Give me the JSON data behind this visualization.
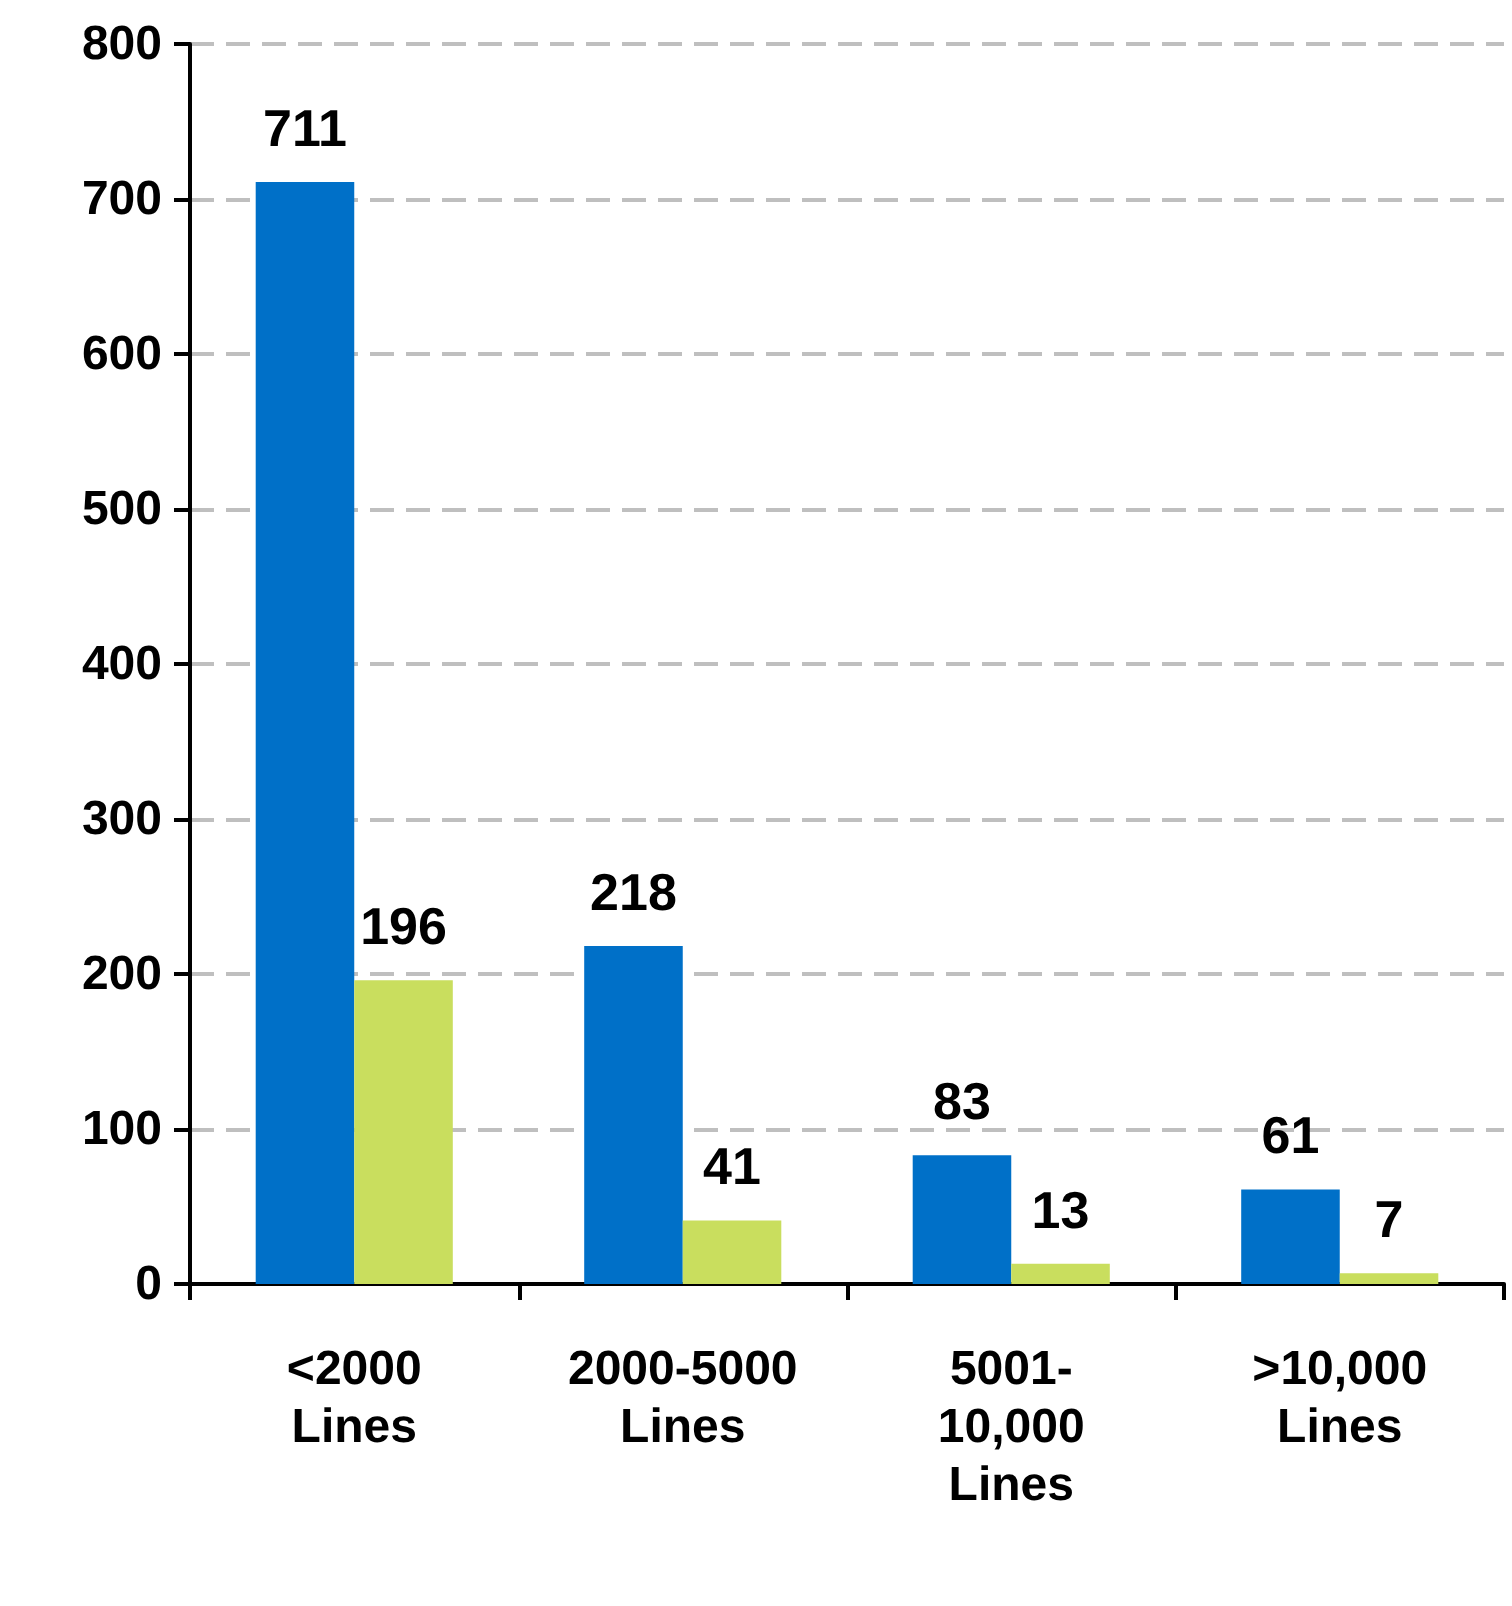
{
  "chart_data": {
    "type": "bar",
    "categories": [
      "<2000 Lines",
      "2000-5000 Lines",
      "5001-10,000 Lines",
      ">10,000 Lines"
    ],
    "series": [
      {
        "color": "#0070c8",
        "values": [
          711,
          218,
          83,
          61
        ]
      },
      {
        "color": "#c9de5e",
        "values": [
          196,
          41,
          13,
          7
        ]
      }
    ],
    "ylim": [
      0,
      800
    ],
    "yticks": [
      0,
      100,
      200,
      300,
      400,
      500,
      600,
      700,
      800
    ],
    "grid": "y",
    "data_labels": true
  }
}
